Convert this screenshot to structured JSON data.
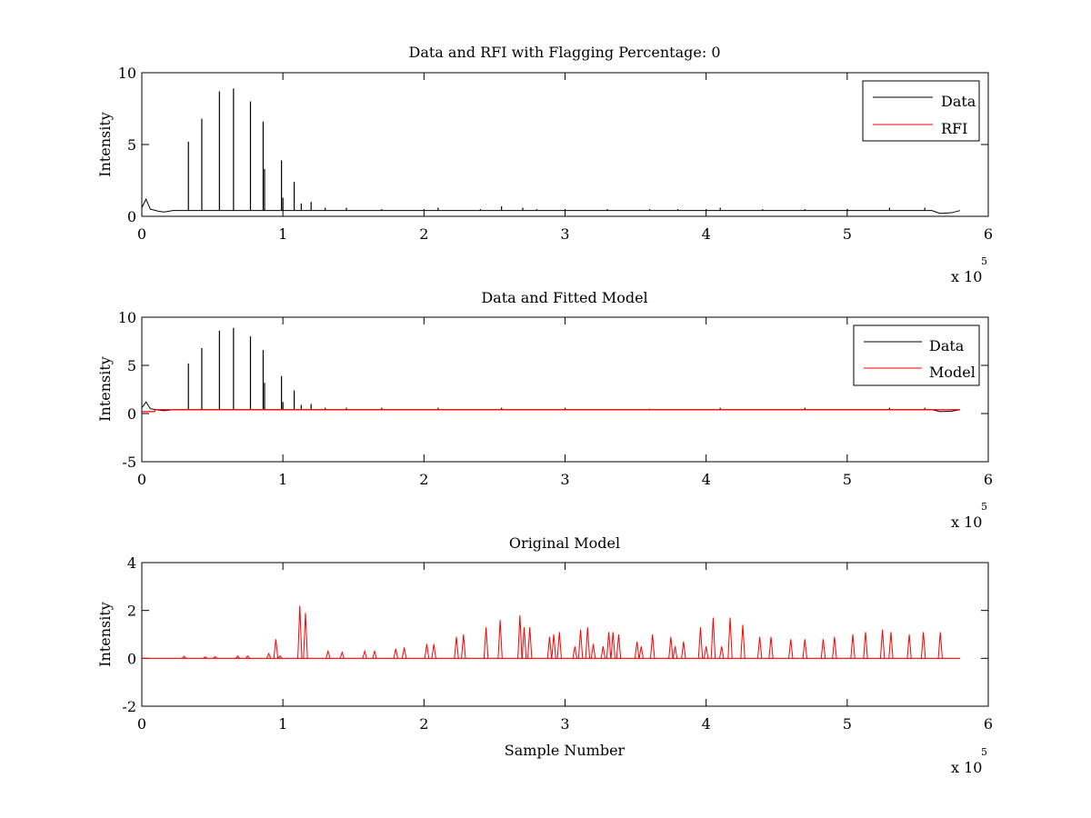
{
  "colors": {
    "data": "#000000",
    "rfi": "#ff0000",
    "model": "#ff0000",
    "axes": "#000000",
    "background": "#ffffff"
  },
  "chart_data": [
    {
      "type": "line",
      "title": "Data and RFI with Flagging Percentage: 0",
      "xlabel": "",
      "ylabel": "Intensity",
      "xlim": [
        0,
        600000
      ],
      "ylim": [
        0,
        10
      ],
      "x_ticks": [
        0,
        1,
        2,
        3,
        4,
        5,
        6
      ],
      "y_ticks": [
        0,
        5,
        10
      ],
      "x_multiplier": {
        "base": "x 10",
        "exponent": "5"
      },
      "legend": {
        "position": "top-right",
        "entries": [
          "Data",
          "RFI"
        ]
      },
      "baseline": 0.4,
      "series": [
        {
          "name": "Data",
          "color": "#000000",
          "spikes": [
            [
              33000,
              5.2
            ],
            [
              42500,
              6.8
            ],
            [
              55000,
              8.7
            ],
            [
              65000,
              8.9
            ],
            [
              77000,
              8.0
            ],
            [
              86000,
              6.6
            ],
            [
              87000,
              3.3
            ],
            [
              99000,
              3.9
            ],
            [
              100000,
              1.3
            ],
            [
              108000,
              2.4
            ],
            [
              113000,
              0.9
            ],
            [
              120000,
              1.0
            ],
            [
              130000,
              0.6
            ],
            [
              145000,
              0.6
            ],
            [
              170000,
              0.5
            ],
            [
              210000,
              0.6
            ],
            [
              240000,
              0.5
            ],
            [
              255000,
              0.7
            ],
            [
              270000,
              0.6
            ],
            [
              280000,
              0.5
            ],
            [
              300000,
              0.5
            ],
            [
              330000,
              0.5
            ],
            [
              360000,
              0.5
            ],
            [
              380000,
              0.5
            ],
            [
              410000,
              0.6
            ],
            [
              440000,
              0.5
            ],
            [
              470000,
              0.5
            ],
            [
              500000,
              0.5
            ],
            [
              530000,
              0.6
            ],
            [
              555000,
              0.6
            ]
          ]
        },
        {
          "name": "RFI",
          "color": "#ff0000",
          "spikes": []
        }
      ]
    },
    {
      "type": "line",
      "title": "Data and Fitted Model",
      "xlabel": "",
      "ylabel": "Intensity",
      "xlim": [
        0,
        600000
      ],
      "ylim": [
        -5,
        10
      ],
      "x_ticks": [
        0,
        1,
        2,
        3,
        4,
        5,
        6
      ],
      "y_ticks": [
        -5,
        0,
        5,
        10
      ],
      "x_multiplier": {
        "base": "x 10",
        "exponent": "5"
      },
      "legend": {
        "position": "top-right",
        "entries": [
          "Data",
          "Model"
        ]
      },
      "baseline": 0.4,
      "series": [
        {
          "name": "Data",
          "color": "#000000",
          "spikes": [
            [
              33000,
              5.2
            ],
            [
              42500,
              6.8
            ],
            [
              55000,
              8.6
            ],
            [
              65000,
              8.9
            ],
            [
              77000,
              8.0
            ],
            [
              86000,
              6.6
            ],
            [
              87000,
              3.2
            ],
            [
              99000,
              3.9
            ],
            [
              100000,
              1.2
            ],
            [
              108000,
              2.4
            ],
            [
              113000,
              0.9
            ],
            [
              120000,
              1.0
            ],
            [
              130000,
              0.6
            ],
            [
              145000,
              0.6
            ],
            [
              170000,
              0.6
            ],
            [
              210000,
              0.6
            ],
            [
              255000,
              0.6
            ],
            [
              300000,
              0.6
            ],
            [
              360000,
              0.5
            ],
            [
              410000,
              0.6
            ],
            [
              470000,
              0.6
            ],
            [
              530000,
              0.6
            ],
            [
              555000,
              0.6
            ]
          ]
        },
        {
          "name": "Model",
          "color": "#ff0000",
          "spikes": []
        }
      ]
    },
    {
      "type": "line",
      "title": "Original Model",
      "xlabel": "Sample Number",
      "ylabel": "Intensity",
      "xlim": [
        0,
        600000
      ],
      "ylim": [
        -2,
        4
      ],
      "x_ticks": [
        0,
        1,
        2,
        3,
        4,
        5,
        6
      ],
      "y_ticks": [
        -2,
        0,
        2,
        4
      ],
      "x_multiplier": {
        "base": "x 10",
        "exponent": "5"
      },
      "baseline": 0,
      "series": [
        {
          "name": "",
          "color": "#ff0000",
          "spikes": [
            [
              30000,
              0.08
            ],
            [
              45000,
              0.06
            ],
            [
              52000,
              0.07
            ],
            [
              68000,
              0.1
            ],
            [
              75000,
              0.1
            ],
            [
              90000,
              0.2
            ],
            [
              95000,
              0.8
            ],
            [
              98000,
              0.1
            ],
            [
              112000,
              2.2
            ],
            [
              116000,
              1.9
            ],
            [
              132000,
              0.3
            ],
            [
              142000,
              0.25
            ],
            [
              158000,
              0.3
            ],
            [
              165000,
              0.3
            ],
            [
              180000,
              0.4
            ],
            [
              186000,
              0.45
            ],
            [
              202000,
              0.6
            ],
            [
              207000,
              0.6
            ],
            [
              223000,
              0.9
            ],
            [
              228000,
              1.0
            ],
            [
              244000,
              1.3
            ],
            [
              254000,
              1.6
            ],
            [
              268000,
              1.8
            ],
            [
              271000,
              1.3
            ],
            [
              275000,
              1.3
            ],
            [
              289000,
              0.9
            ],
            [
              292000,
              1.0
            ],
            [
              296000,
              1.1
            ],
            [
              307000,
              0.5
            ],
            [
              311000,
              1.2
            ],
            [
              316000,
              1.3
            ],
            [
              320000,
              0.6
            ],
            [
              327000,
              0.5
            ],
            [
              331000,
              1.1
            ],
            [
              334000,
              1.1
            ],
            [
              338000,
              1.0
            ],
            [
              351000,
              0.7
            ],
            [
              354000,
              0.5
            ],
            [
              362000,
              1.0
            ],
            [
              375000,
              0.9
            ],
            [
              378000,
              0.5
            ],
            [
              384000,
              0.7
            ],
            [
              396000,
              1.3
            ],
            [
              400000,
              0.5
            ],
            [
              405000,
              1.7
            ],
            [
              411000,
              0.5
            ],
            [
              417000,
              1.7
            ],
            [
              426000,
              1.4
            ],
            [
              438000,
              0.9
            ],
            [
              446000,
              0.9
            ],
            [
              460000,
              0.8
            ],
            [
              470000,
              0.8
            ],
            [
              483000,
              0.8
            ],
            [
              491000,
              0.9
            ],
            [
              504000,
              1.0
            ],
            [
              513000,
              1.1
            ],
            [
              525000,
              1.2
            ],
            [
              531000,
              1.1
            ],
            [
              544000,
              1.0
            ],
            [
              554000,
              1.1
            ],
            [
              566000,
              1.1
            ]
          ]
        }
      ]
    }
  ]
}
